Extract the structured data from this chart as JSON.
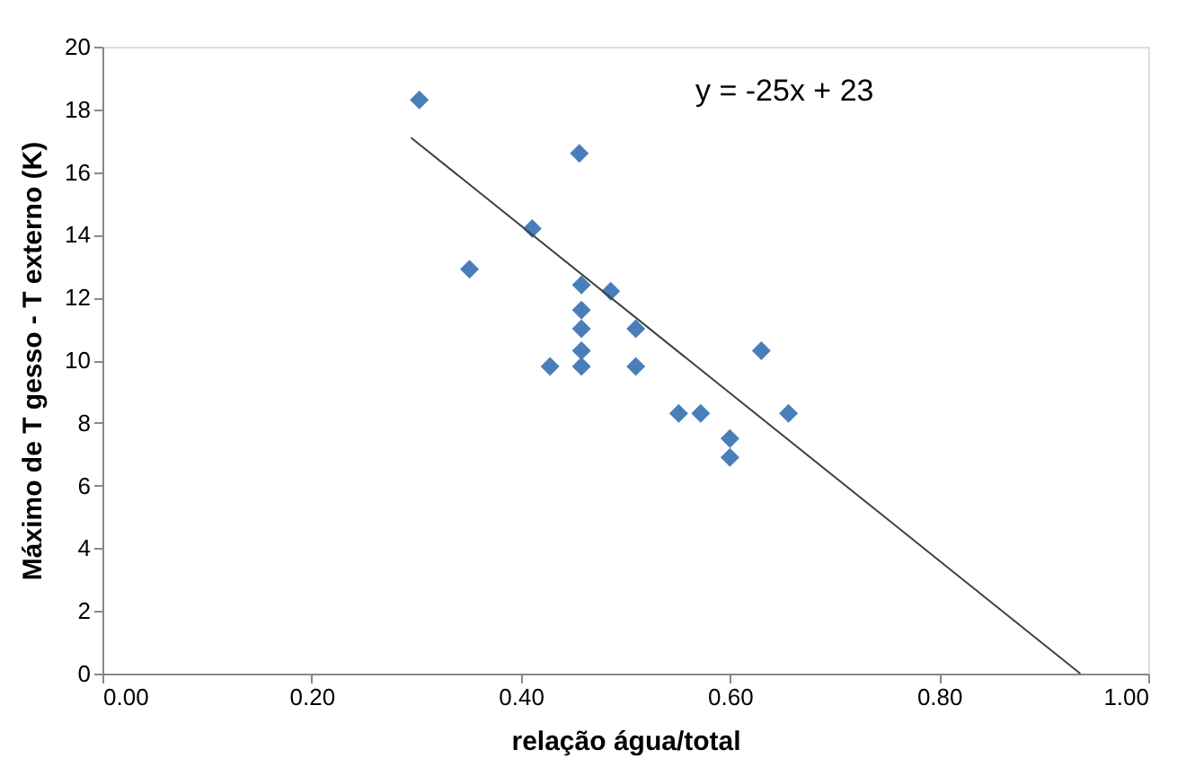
{
  "chart_data": {
    "type": "scatter",
    "xlabel": "relação água/total",
    "ylabel": "Máximo de T gesso - T externo (K)",
    "xlim": [
      0,
      1
    ],
    "xticks": [
      {
        "value": 0,
        "label": "0.00"
      },
      {
        "value": 0.2,
        "label": "0.20"
      },
      {
        "value": 0.4,
        "label": "0.40"
      },
      {
        "value": 0.6,
        "label": "0.60"
      },
      {
        "value": 0.8,
        "label": "0.80"
      },
      {
        "value": 1,
        "label": "1.00"
      }
    ],
    "ylim": [
      0,
      20
    ],
    "yticks": [
      0,
      2,
      4,
      6,
      8,
      10,
      12,
      14,
      16,
      18,
      20
    ],
    "grid": false,
    "annotations": [
      "y = -25x + 23"
    ],
    "series": [
      {
        "marker": "diamond",
        "color": "#4a7ebb",
        "x": [
          0.303,
          0.351,
          0.411,
          0.456,
          0.458,
          0.486,
          0.458,
          0.458,
          0.51,
          0.458,
          0.428,
          0.458,
          0.51,
          0.63,
          0.551,
          0.572,
          0.6,
          0.6,
          0.656
        ],
        "values": [
          18.3,
          12.9,
          14.2,
          16.6,
          12.4,
          12.2,
          11.6,
          11.0,
          11.0,
          10.3,
          9.8,
          9.8,
          9.8,
          10.3,
          8.3,
          8.3,
          7.5,
          6.9,
          8.3
        ]
      },
      {
        "type": "line",
        "line_style": "solid",
        "color": "#404040",
        "x": [
          0.295,
          0.935
        ],
        "values": [
          17.1,
          0
        ]
      }
    ]
  }
}
